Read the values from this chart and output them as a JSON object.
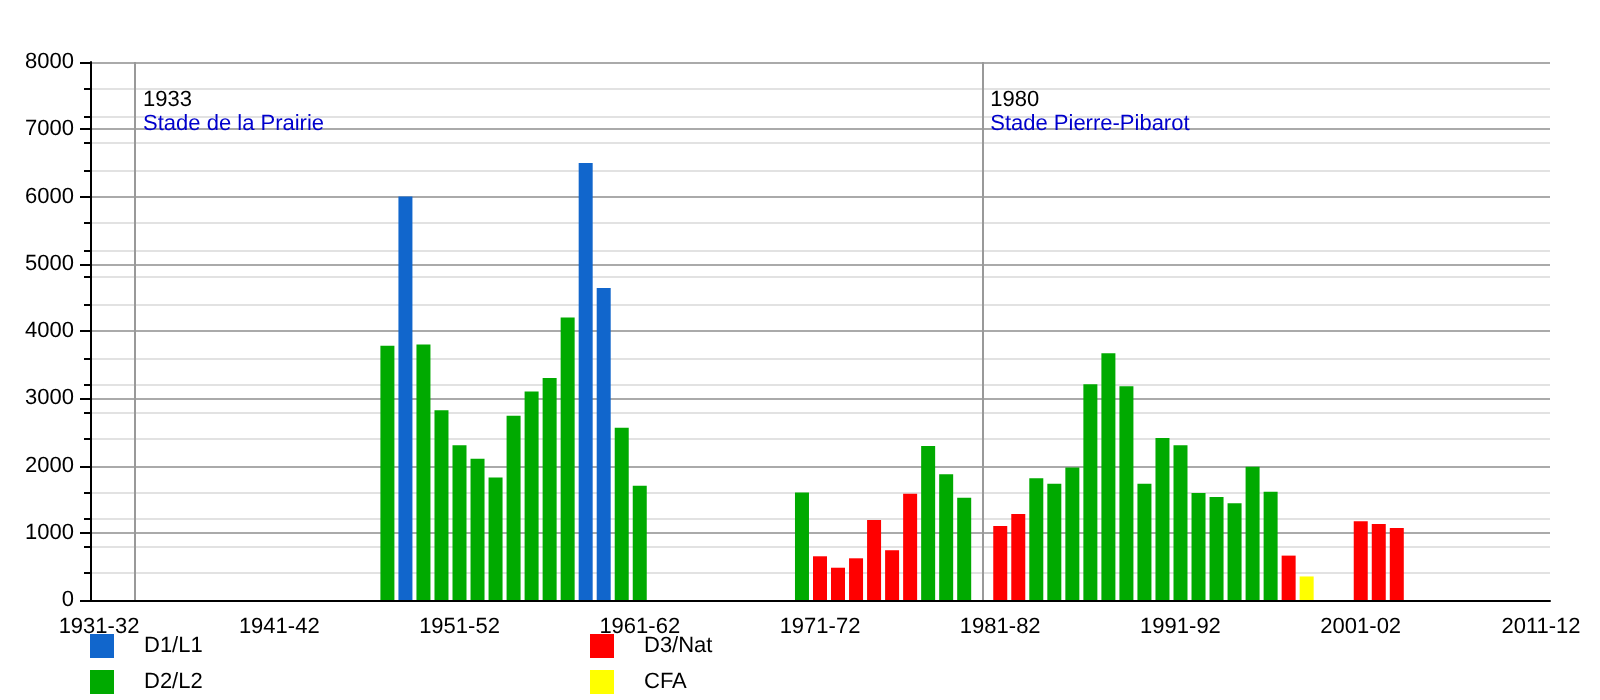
{
  "chart_data": {
    "type": "bar",
    "categories": [
      "1931-32",
      null,
      null,
      null,
      null,
      null,
      null,
      null,
      null,
      null,
      "1941-42",
      null,
      null,
      null,
      null,
      null,
      null,
      null,
      null,
      null,
      "1951-52",
      null,
      null,
      null,
      null,
      null,
      null,
      null,
      null,
      null,
      "1961-62",
      null,
      null,
      null,
      null,
      null,
      null,
      null,
      null,
      null,
      "1971-72",
      null,
      null,
      null,
      null,
      null,
      null,
      null,
      null,
      null,
      "1981-82",
      null,
      null,
      null,
      null,
      null,
      null,
      null,
      null,
      null,
      "1991-92",
      null,
      null,
      null,
      null,
      null,
      null,
      null,
      null,
      null,
      "2001-02",
      null,
      null,
      null,
      null,
      null,
      null,
      null,
      null,
      null,
      "2011-12"
    ],
    "ylim": [
      0,
      8000
    ],
    "yticks": [
      0,
      1000,
      2000,
      3000,
      4000,
      5000,
      6000,
      7000,
      8000
    ],
    "grid": "y",
    "legend": "bottom",
    "series": [
      {
        "name": "D1/L1",
        "color": "#1166cc",
        "values": [
          null,
          null,
          null,
          null,
          null,
          null,
          null,
          null,
          null,
          null,
          null,
          null,
          null,
          null,
          null,
          null,
          null,
          6000,
          null,
          null,
          null,
          null,
          null,
          null,
          null,
          null,
          null,
          6500,
          4640,
          null,
          null,
          null,
          null,
          null,
          null,
          null,
          null,
          null,
          null,
          null,
          null,
          null,
          null,
          null,
          null,
          null,
          null,
          null,
          null,
          null,
          null,
          null,
          null,
          null,
          null,
          null,
          null,
          null,
          null,
          null,
          null,
          null,
          null,
          null,
          null,
          null,
          null,
          null,
          null,
          null,
          null,
          null,
          null,
          null,
          null,
          null,
          null,
          null,
          null,
          null,
          null
        ]
      },
      {
        "name": "D2/L2",
        "color": "#00aa00",
        "values": [
          null,
          null,
          null,
          null,
          null,
          null,
          null,
          null,
          null,
          null,
          null,
          null,
          null,
          null,
          null,
          null,
          3780,
          null,
          3800,
          2820,
          2300,
          2100,
          1820,
          2740,
          3100,
          3300,
          4200,
          null,
          null,
          2560,
          1700,
          null,
          null,
          null,
          null,
          null,
          null,
          null,
          null,
          1600,
          null,
          null,
          null,
          null,
          null,
          null,
          2290,
          1870,
          1520,
          null,
          null,
          null,
          1810,
          1730,
          1970,
          3210,
          3670,
          3180,
          1730,
          2410,
          2300,
          1590,
          1530,
          1440,
          1980,
          1610,
          null,
          null,
          null,
          null,
          null,
          null,
          null,
          null,
          null,
          null,
          null,
          null,
          null,
          null,
          null
        ]
      },
      {
        "name": "D3/Nat",
        "color": "#ff0000",
        "values": [
          null,
          null,
          null,
          null,
          null,
          null,
          null,
          null,
          null,
          null,
          null,
          null,
          null,
          null,
          null,
          null,
          null,
          null,
          null,
          null,
          null,
          null,
          null,
          null,
          null,
          null,
          null,
          null,
          null,
          null,
          null,
          null,
          null,
          null,
          null,
          null,
          null,
          null,
          null,
          null,
          650,
          480,
          620,
          1190,
          740,
          1580,
          null,
          null,
          null,
          null,
          1100,
          1280,
          null,
          null,
          null,
          null,
          null,
          null,
          null,
          null,
          null,
          null,
          null,
          null,
          null,
          null,
          660,
          null,
          null,
          null,
          1170,
          1130,
          1070,
          null,
          null,
          null,
          null,
          null,
          null,
          null,
          null
        ]
      },
      {
        "name": "CFA",
        "color": "#ffff00",
        "values": [
          null,
          null,
          null,
          null,
          null,
          null,
          null,
          null,
          null,
          null,
          null,
          null,
          null,
          null,
          null,
          null,
          null,
          null,
          null,
          null,
          null,
          null,
          null,
          null,
          null,
          null,
          null,
          null,
          null,
          null,
          null,
          null,
          null,
          null,
          null,
          null,
          null,
          null,
          null,
          null,
          null,
          null,
          null,
          null,
          null,
          null,
          null,
          null,
          null,
          null,
          null,
          null,
          null,
          null,
          null,
          null,
          null,
          null,
          null,
          null,
          null,
          null,
          null,
          null,
          null,
          null,
          null,
          350,
          null,
          null,
          null,
          null,
          null,
          null,
          null,
          null,
          null,
          null,
          null,
          null,
          null
        ]
      }
    ],
    "annotations": [
      "1933",
      "Stade de la Prairie",
      "1980",
      "Stade Pierre-Pibarot"
    ]
  }
}
